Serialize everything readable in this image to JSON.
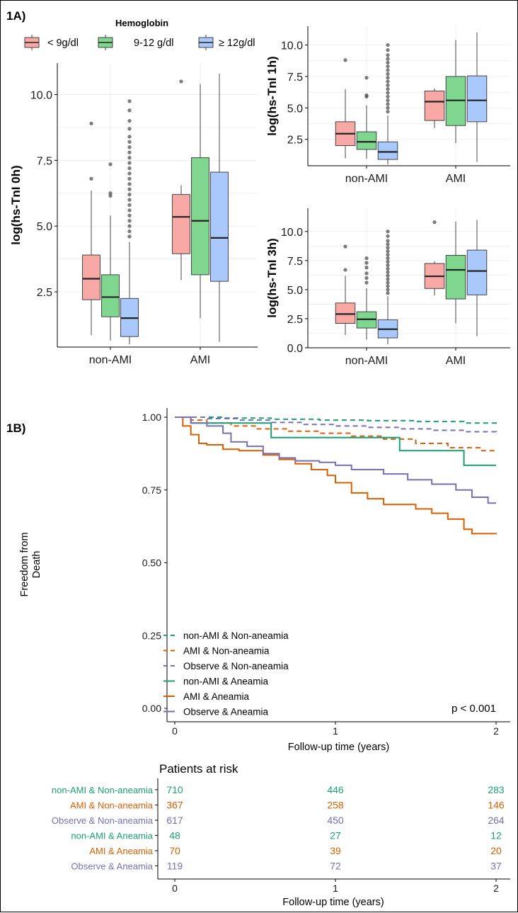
{
  "panel_labels": {
    "a": "1A)",
    "b": "1B)"
  },
  "colors": {
    "low": "#F8A9A6",
    "mid": "#7FD68E",
    "high": "#A9C8FB",
    "teal": "#1B9E77",
    "orange": "#D95F02",
    "purple": "#7570B3",
    "outlier": "#555555"
  },
  "chart_data": [
    {
      "id": "tni-0h",
      "type": "boxplot",
      "ylabel": "log(hs-TnI 0h)",
      "legend_title": "Hemoglobin",
      "legend": [
        "< 9g/dl",
        "9-12 g/dl",
        "≥ 12g/dl"
      ],
      "categories": [
        "non-AMI",
        "AMI"
      ],
      "ylim": [
        0.4,
        11.2
      ],
      "yticks": [
        2.5,
        5.0,
        7.5,
        10.0
      ],
      "yticklabels": [
        "2.5",
        "5.0",
        "7.5",
        "10.0"
      ],
      "groups": [
        {
          "category": "non-AMI",
          "hb": "< 9g/dl",
          "whisker_low": 0.85,
          "q1": 2.2,
          "median": 3.0,
          "q3": 3.9,
          "whisker_high": 6.35,
          "outliers": [
            6.8,
            8.9
          ]
        },
        {
          "category": "non-AMI",
          "hb": "9-12 g/dl",
          "whisker_low": 0.65,
          "q1": 1.55,
          "median": 2.3,
          "q3": 3.15,
          "whisker_high": 5.4,
          "outliers": [
            6.15,
            6.25,
            7.35
          ]
        },
        {
          "category": "non-AMI",
          "hb": "≥ 12g/dl",
          "whisker_low": 0.5,
          "q1": 0.8,
          "median": 1.5,
          "q3": 2.25,
          "whisker_high": 4.4,
          "outliers": [
            4.6,
            4.8,
            5.0,
            5.2,
            5.4,
            5.6,
            5.8,
            6.0,
            6.2,
            6.4,
            6.6,
            6.8,
            7.0,
            7.2,
            7.4,
            7.6,
            7.8,
            8.0,
            8.2,
            8.4,
            8.7,
            9.0,
            9.4,
            9.75
          ]
        },
        {
          "category": "AMI",
          "hb": "< 9g/dl",
          "whisker_low": 2.95,
          "q1": 3.95,
          "median": 5.35,
          "q3": 6.2,
          "whisker_high": 6.55,
          "outliers": [
            10.5
          ]
        },
        {
          "category": "AMI",
          "hb": "9-12 g/dl",
          "whisker_low": 1.5,
          "q1": 3.15,
          "median": 5.2,
          "q3": 7.6,
          "whisker_high": 10.4,
          "outliers": []
        },
        {
          "category": "AMI",
          "hb": "≥ 12g/dl",
          "whisker_low": 0.6,
          "q1": 2.9,
          "median": 4.55,
          "q3": 7.05,
          "whisker_high": 10.8,
          "outliers": []
        }
      ]
    },
    {
      "id": "tni-1h",
      "type": "boxplot",
      "ylabel": "log(hs-TnI 1h)",
      "categories": [
        "non-AMI",
        "AMI"
      ],
      "ylim": [
        0.4,
        11.5
      ],
      "yticks": [
        2.5,
        5.0,
        7.5,
        10.0
      ],
      "yticklabels": [
        "2.5",
        "5.0",
        "7.5",
        "10.0"
      ],
      "groups": [
        {
          "category": "non-AMI",
          "hb": "< 9g/dl",
          "whisker_low": 1.0,
          "q1": 2.0,
          "median": 2.95,
          "q3": 3.9,
          "whisker_high": 6.5,
          "outliers": [
            8.8
          ]
        },
        {
          "category": "non-AMI",
          "hb": "9-12 g/dl",
          "whisker_low": 0.95,
          "q1": 1.7,
          "median": 2.3,
          "q3": 3.1,
          "whisker_high": 5.2,
          "outliers": [
            5.9,
            6.0,
            7.4
          ]
        },
        {
          "category": "non-AMI",
          "hb": "≥ 12g/dl",
          "whisker_low": 0.5,
          "q1": 0.9,
          "median": 1.5,
          "q3": 2.3,
          "whisker_high": 4.4,
          "outliers": [
            4.7,
            5.0,
            5.3,
            5.6,
            5.9,
            6.2,
            6.5,
            6.8,
            7.1,
            7.4,
            7.7,
            8.0,
            8.3,
            8.6,
            8.9,
            9.2,
            9.6,
            10.0
          ]
        },
        {
          "category": "AMI",
          "hb": "< 9g/dl",
          "whisker_low": 3.4,
          "q1": 4.0,
          "median": 5.5,
          "q3": 6.35,
          "whisker_high": 6.55,
          "outliers": []
        },
        {
          "category": "AMI",
          "hb": "9-12 g/dl",
          "whisker_low": 2.2,
          "q1": 3.6,
          "median": 5.6,
          "q3": 7.5,
          "whisker_high": 10.4,
          "outliers": []
        },
        {
          "category": "AMI",
          "hb": "≥ 12g/dl",
          "whisker_low": 0.7,
          "q1": 3.9,
          "median": 5.6,
          "q3": 7.55,
          "whisker_high": 11.0,
          "outliers": []
        }
      ]
    },
    {
      "id": "tni-3h",
      "type": "boxplot",
      "ylabel": "log(hs-TnI 3h)",
      "categories": [
        "non-AMI",
        "AMI"
      ],
      "ylim": [
        0.0,
        12.0
      ],
      "yticks": [
        0.0,
        2.5,
        5.0,
        7.5,
        10.0
      ],
      "yticklabels": [
        "0.0",
        "2.5",
        "5.0",
        "7.5",
        "10.0"
      ],
      "groups": [
        {
          "category": "non-AMI",
          "hb": "< 9g/dl",
          "whisker_low": 1.1,
          "q1": 2.1,
          "median": 2.9,
          "q3": 3.85,
          "whisker_high": 6.2,
          "outliers": [
            6.7,
            8.7
          ]
        },
        {
          "category": "non-AMI",
          "hb": "9-12 g/dl",
          "whisker_low": 0.7,
          "q1": 1.7,
          "median": 2.45,
          "q3": 3.1,
          "whisker_high": 5.1,
          "outliers": [
            5.6,
            6.0,
            6.4,
            6.9,
            7.3,
            7.7
          ]
        },
        {
          "category": "non-AMI",
          "hb": "≥ 12g/dl",
          "whisker_low": 0.3,
          "q1": 0.85,
          "median": 1.6,
          "q3": 2.4,
          "whisker_high": 4.45,
          "outliers": [
            4.7,
            5.0,
            5.3,
            5.6,
            5.9,
            6.2,
            6.5,
            6.8,
            7.1,
            7.4,
            7.7,
            8.0,
            8.3,
            8.6,
            8.9,
            9.2,
            9.6,
            10.0
          ]
        },
        {
          "category": "AMI",
          "hb": "< 9g/dl",
          "whisker_low": 4.5,
          "q1": 5.1,
          "median": 6.15,
          "q3": 7.25,
          "whisker_high": 7.45,
          "outliers": [
            10.8
          ]
        },
        {
          "category": "AMI",
          "hb": "9-12 g/dl",
          "whisker_low": 2.1,
          "q1": 4.2,
          "median": 6.7,
          "q3": 7.95,
          "whisker_high": 10.85,
          "outliers": []
        },
        {
          "category": "AMI",
          "hb": "≥ 12g/dl",
          "whisker_low": 1.0,
          "q1": 4.55,
          "median": 6.6,
          "q3": 8.4,
          "whisker_high": 11.0,
          "outliers": []
        }
      ]
    },
    {
      "id": "survival",
      "type": "line",
      "ylabel": "Freedom from Death",
      "xlabel": "Follow-up time (years)",
      "xlim": [
        0,
        2
      ],
      "ylim": [
        0,
        1
      ],
      "xticks": [
        0,
        1,
        2
      ],
      "yticks": [
        0.0,
        0.25,
        0.5,
        0.75,
        1.0
      ],
      "yticklabels": [
        "0.00",
        "0.25",
        "0.50",
        "0.75",
        "1.00"
      ],
      "annotation": "p < 0.001",
      "series": [
        {
          "name": "non-AMI & Non-aneamia",
          "color": "#1B9E77",
          "dash": true,
          "points": [
            [
              0,
              1.0
            ],
            [
              0.3,
              0.997
            ],
            [
              0.6,
              0.993
            ],
            [
              0.9,
              0.99
            ],
            [
              1.2,
              0.988
            ],
            [
              1.5,
              0.985
            ],
            [
              1.8,
              0.98
            ],
            [
              2.0,
              0.978
            ]
          ]
        },
        {
          "name": "AMI & Non-aneamia",
          "color": "#D95F02",
          "dash": true,
          "points": [
            [
              0,
              1.0
            ],
            [
              0.1,
              0.99
            ],
            [
              0.2,
              0.98
            ],
            [
              0.35,
              0.97
            ],
            [
              0.5,
              0.96
            ],
            [
              0.7,
              0.952
            ],
            [
              0.9,
              0.945
            ],
            [
              1.1,
              0.935
            ],
            [
              1.3,
              0.925
            ],
            [
              1.5,
              0.91
            ],
            [
              1.7,
              0.895
            ],
            [
              1.9,
              0.885
            ],
            [
              2.0,
              0.883
            ]
          ]
        },
        {
          "name": "Observe & Non-aneamia",
          "color": "#7570B3",
          "dash": true,
          "points": [
            [
              0,
              1.0
            ],
            [
              0.2,
              0.995
            ],
            [
              0.4,
              0.99
            ],
            [
              0.6,
              0.982
            ],
            [
              0.8,
              0.975
            ],
            [
              1.0,
              0.97
            ],
            [
              1.2,
              0.965
            ],
            [
              1.4,
              0.96
            ],
            [
              1.6,
              0.955
            ],
            [
              1.8,
              0.95
            ],
            [
              2.0,
              0.943
            ]
          ]
        },
        {
          "name": "non-AMI & Aneamia",
          "color": "#1B9E77",
          "dash": false,
          "points": [
            [
              0,
              1.0
            ],
            [
              0.1,
              0.98
            ],
            [
              0.6,
              0.98
            ],
            [
              0.6,
              0.93
            ],
            [
              1.4,
              0.93
            ],
            [
              1.4,
              0.885
            ],
            [
              1.8,
              0.885
            ],
            [
              1.8,
              0.835
            ],
            [
              2.0,
              0.835
            ]
          ]
        },
        {
          "name": "AMI & Aneamia",
          "color": "#D95F02",
          "dash": false,
          "points": [
            [
              0,
              1.0
            ],
            [
              0.05,
              0.97
            ],
            [
              0.1,
              0.94
            ],
            [
              0.15,
              0.91
            ],
            [
              0.2,
              0.905
            ],
            [
              0.3,
              0.89
            ],
            [
              0.4,
              0.885
            ],
            [
              0.55,
              0.87
            ],
            [
              0.65,
              0.855
            ],
            [
              0.75,
              0.84
            ],
            [
              0.85,
              0.82
            ],
            [
              0.95,
              0.8
            ],
            [
              1.0,
              0.775
            ],
            [
              1.1,
              0.74
            ],
            [
              1.2,
              0.72
            ],
            [
              1.3,
              0.7
            ],
            [
              1.5,
              0.685
            ],
            [
              1.6,
              0.67
            ],
            [
              1.7,
              0.65
            ],
            [
              1.8,
              0.615
            ],
            [
              1.85,
              0.6
            ],
            [
              2.0,
              0.598
            ]
          ]
        },
        {
          "name": "Observe & Aneamia",
          "color": "#7570B3",
          "dash": false,
          "points": [
            [
              0,
              1.0
            ],
            [
              0.1,
              0.98
            ],
            [
              0.2,
              0.97
            ],
            [
              0.3,
              0.945
            ],
            [
              0.35,
              0.915
            ],
            [
              0.45,
              0.9
            ],
            [
              0.55,
              0.875
            ],
            [
              0.65,
              0.86
            ],
            [
              0.75,
              0.85
            ],
            [
              0.9,
              0.845
            ],
            [
              1.0,
              0.835
            ],
            [
              1.1,
              0.82
            ],
            [
              1.3,
              0.805
            ],
            [
              1.45,
              0.785
            ],
            [
              1.6,
              0.77
            ],
            [
              1.75,
              0.75
            ],
            [
              1.85,
              0.725
            ],
            [
              1.95,
              0.705
            ],
            [
              2.0,
              0.705
            ]
          ]
        }
      ]
    },
    {
      "id": "at-risk",
      "type": "table",
      "title": "Patients at risk",
      "xlabel": "Follow-up time (years)",
      "xticks": [
        0,
        1,
        2
      ],
      "rows": [
        {
          "name": "non-AMI & Non-aneamia",
          "color": "#1B9E77",
          "values": [
            710,
            446,
            283
          ]
        },
        {
          "name": "AMI & Non-aneamia",
          "color": "#D95F02",
          "values": [
            367,
            258,
            146
          ]
        },
        {
          "name": "Observe & Non-aneamia",
          "color": "#7570B3",
          "values": [
            617,
            450,
            264
          ]
        },
        {
          "name": "non-AMI & Aneamia",
          "color": "#1B9E77",
          "values": [
            48,
            27,
            12
          ]
        },
        {
          "name": "AMI & Aneamia",
          "color": "#D95F02",
          "values": [
            70,
            39,
            20
          ]
        },
        {
          "name": "Observe & Aneamia",
          "color": "#7570B3",
          "values": [
            119,
            72,
            37
          ]
        }
      ]
    }
  ]
}
